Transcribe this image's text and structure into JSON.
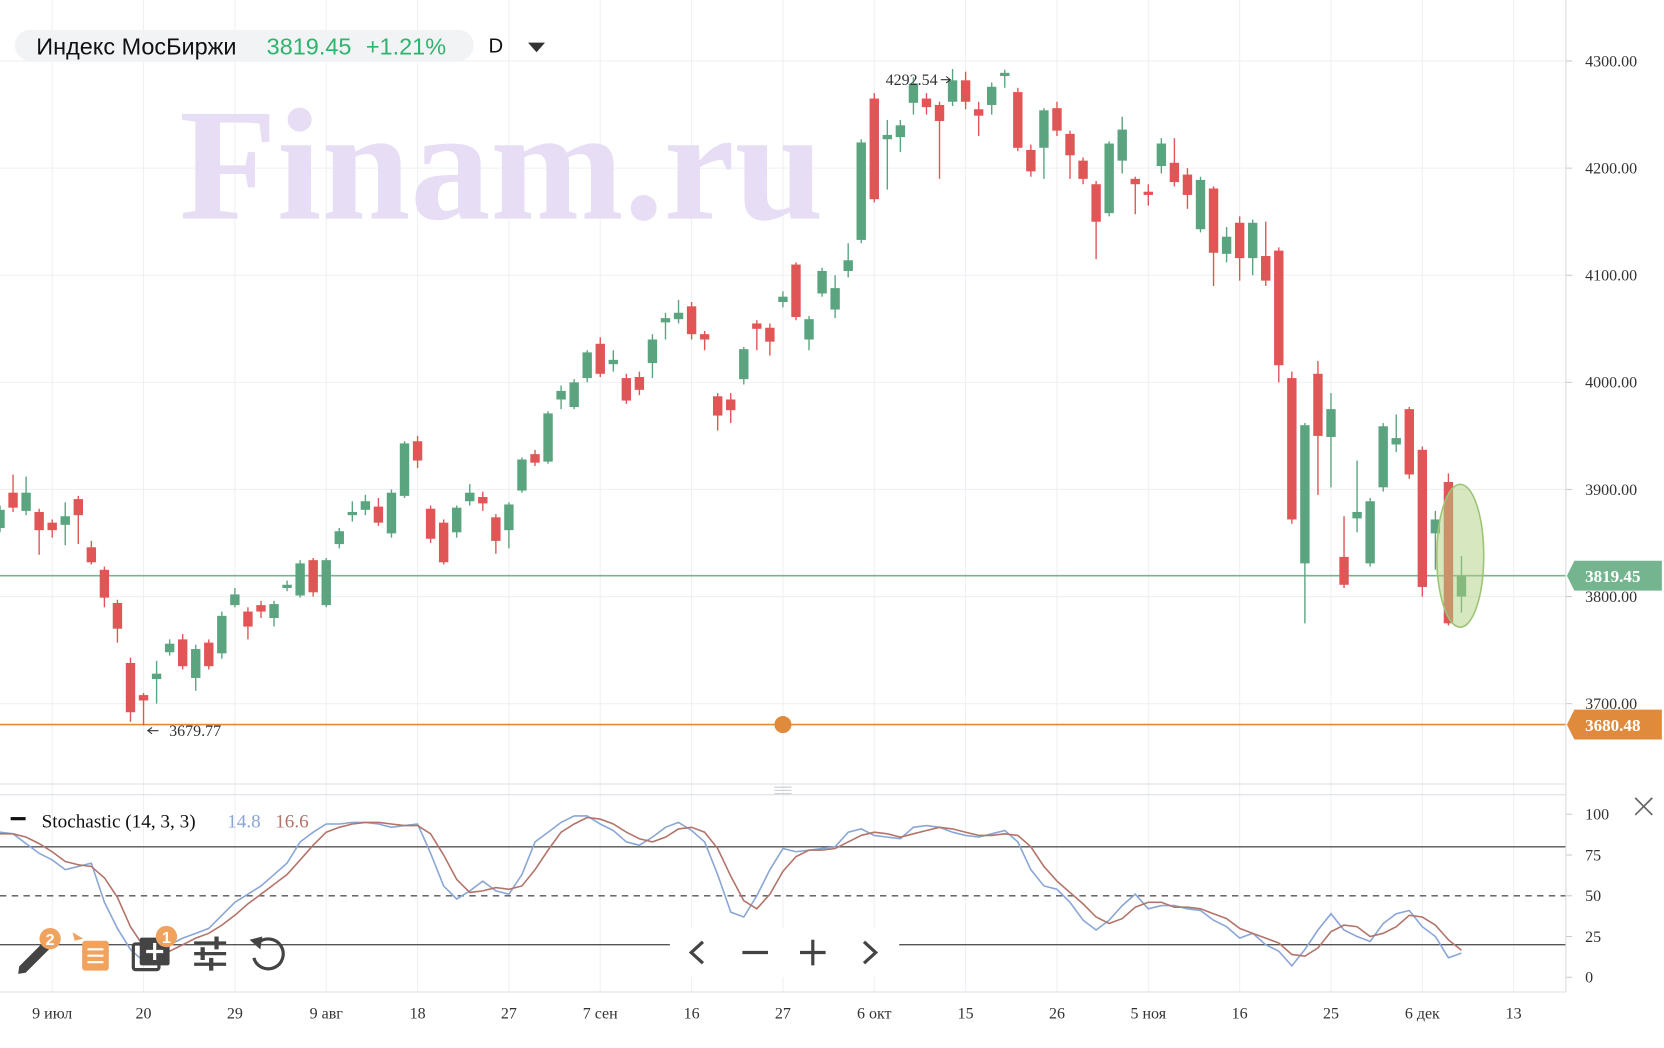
{
  "chart_data": {
    "type": "candlestick",
    "title": "Индекс МосБиржи",
    "change": "+1.21%",
    "interval": "D",
    "watermark": "Finam.ru",
    "up_color": "#5aa57f",
    "down_color": "#e05555",
    "price_line_color": "#74b58f",
    "level_line": 3680.48,
    "level_color": "#e08a3c",
    "grid": true,
    "open": [
      3864,
      3897,
      3880,
      3879,
      3869,
      3867,
      3891,
      3846,
      3825,
      3794,
      3738,
      3708,
      3723,
      3748,
      3760,
      3724,
      3757,
      3747,
      3792,
      3786,
      3792,
      3780,
      3808,
      3801,
      3834,
      3792,
      3849,
      3876,
      3881,
      3884,
      3859,
      3894,
      3945,
      3882,
      3869,
      3860,
      3889,
      3893,
      3874,
      3862,
      3899,
      3933,
      3926,
      3984,
      3977,
      4004,
      4036,
      4017,
      4004,
      4005,
      4018,
      4056,
      4059,
      4071,
      4045,
      3987,
      3984,
      4003,
      4055,
      4051,
      4075,
      4110,
      4040,
      4083,
      4068,
      4104,
      4133,
      4265,
      4227,
      4229,
      4261,
      4265,
      4259,
      4262,
      4282,
      4255,
      4259,
      4286,
      4271,
      4217,
      4219,
      4256,
      4232,
      4207,
      4185,
      4158,
      4207,
      4190,
      4178,
      4202,
      4205,
      4194,
      4143,
      4181,
      4120,
      4149,
      4116,
      4118,
      4123,
      4004,
      3831,
      4008,
      3949,
      3837,
      3873,
      3831,
      3902,
      3942,
      3975,
      3937,
      3859,
      3907,
      3800
    ],
    "high": [
      3885,
      3914,
      3912,
      3882,
      3872,
      3888,
      3894,
      3852,
      3828,
      3797,
      3743,
      3710,
      3740,
      3760,
      3765,
      3755,
      3760,
      3786,
      3808,
      3790,
      3796,
      3796,
      3815,
      3834,
      3836,
      3836,
      3864,
      3889,
      3895,
      3892,
      3900,
      3945,
      3950,
      3885,
      3872,
      3885,
      3905,
      3898,
      3877,
      3888,
      3930,
      3937,
      3973,
      3997,
      4003,
      4030,
      4042,
      4030,
      4008,
      4010,
      4045,
      4065,
      4077,
      4075,
      4048,
      3990,
      3990,
      4033,
      4058,
      4055,
      4085,
      4112,
      4062,
      4107,
      4100,
      4130,
      4227,
      4270,
      4245,
      4245,
      4285,
      4270,
      4262,
      4292.54,
      4290,
      4262,
      4280,
      4292,
      4275,
      4222,
      4256,
      4262,
      4235,
      4210,
      4188,
      4225,
      4248,
      4192,
      4185,
      4228,
      4228,
      4200,
      4192,
      4183,
      4145,
      4155,
      4152,
      4150,
      4126,
      4010,
      3962,
      4020,
      3990,
      3875,
      3927,
      3892,
      3962,
      3970,
      3977,
      3940,
      3880,
      3915,
      3838
    ],
    "low": [
      3860,
      3879,
      3876,
      3839,
      3855,
      3848,
      3849,
      3830,
      3790,
      3757,
      3683,
      3679.77,
      3700,
      3745,
      3732,
      3712,
      3732,
      3742,
      3790,
      3760,
      3780,
      3772,
      3805,
      3799,
      3800,
      3790,
      3845,
      3870,
      3876,
      3866,
      3855,
      3892,
      3920,
      3850,
      3830,
      3855,
      3885,
      3880,
      3840,
      3845,
      3897,
      3922,
      3924,
      3975,
      3975,
      4000,
      4005,
      4010,
      3980,
      3988,
      4004,
      4040,
      4055,
      4040,
      4030,
      3955,
      3962,
      3998,
      4030,
      4025,
      4070,
      4058,
      4030,
      4080,
      4060,
      4098,
      4130,
      4168,
      4180,
      4215,
      4250,
      4250,
      4190,
      4258,
      4255,
      4230,
      4250,
      4275,
      4216,
      4192,
      4190,
      4230,
      4190,
      4185,
      4115,
      4155,
      4195,
      4157,
      4165,
      4195,
      4183,
      4162,
      4140,
      4090,
      4112,
      4095,
      4100,
      4090,
      4000,
      3868,
      3775,
      3895,
      3902,
      3808,
      3860,
      3828,
      3898,
      3935,
      3910,
      3800,
      3825,
      3773,
      3785
    ],
    "close": [
      3881,
      3883,
      3897,
      3862,
      3862,
      3875,
      3876,
      3832,
      3799,
      3770,
      3692,
      3703,
      3728,
      3756,
      3735,
      3751,
      3735,
      3782,
      3802,
      3772,
      3786,
      3793,
      3811,
      3831,
      3804,
      3834,
      3861,
      3879,
      3889,
      3869,
      3897,
      3943,
      3927,
      3854,
      3832,
      3883,
      3897,
      3887,
      3852,
      3886,
      3928,
      3925,
      3971,
      3992,
      4000,
      4028,
      4008,
      4021,
      3983,
      3993,
      4040,
      4060,
      4065,
      4045,
      4040,
      3969,
      3974,
      4031,
      4050,
      4038,
      4080,
      4061,
      4059,
      4104,
      4088,
      4114,
      4224,
      4171,
      4231,
      4240,
      4279,
      4257,
      4244,
      4282,
      4262,
      4249,
      4276,
      4289,
      4219,
      4197,
      4254,
      4235,
      4212,
      4190,
      4150,
      4223,
      4236,
      4185,
      4175,
      4223,
      4187,
      4175,
      4189,
      4121,
      4136,
      4116,
      4149,
      4095,
      4016,
      3872,
      3960,
      3950,
      3975,
      3811,
      3879,
      3889,
      3959,
      3948,
      3914,
      3809,
      3872,
      3775,
      3819.45
    ],
    "xlim": [
      0,
      120
    ],
    "xticks": [
      {
        "value": 4,
        "label": "9 июл"
      },
      {
        "value": 11,
        "label": "20"
      },
      {
        "value": 18,
        "label": "29"
      },
      {
        "value": 25,
        "label": "9 авг"
      },
      {
        "value": 32,
        "label": "18"
      },
      {
        "value": 39,
        "label": "27"
      },
      {
        "value": 46,
        "label": "7 сен"
      },
      {
        "value": 53,
        "label": "16"
      },
      {
        "value": 60,
        "label": "27"
      },
      {
        "value": 67,
        "label": "6 окт"
      },
      {
        "value": 74,
        "label": "15"
      },
      {
        "value": 81,
        "label": "26"
      },
      {
        "value": 88,
        "label": "5 ноя"
      },
      {
        "value": 95,
        "label": "16"
      },
      {
        "value": 102,
        "label": "25"
      },
      {
        "value": 109,
        "label": "6 дек"
      },
      {
        "value": 116,
        "label": "13"
      }
    ],
    "ylim": [
      3625,
      4357
    ],
    "yticks": [
      {
        "value": 3700,
        "label": "3700.00"
      },
      {
        "value": 3800,
        "label": "3800.00"
      },
      {
        "value": 3900,
        "label": "3900.00"
      },
      {
        "value": 4000,
        "label": "4000.00"
      },
      {
        "value": 4100,
        "label": "4100.00"
      },
      {
        "value": 4200,
        "label": "4200.00"
      },
      {
        "value": 4300,
        "label": "4300.00"
      }
    ],
    "indicator": {
      "type": "line",
      "name": "Stochastic (14, 3, 3)",
      "ylim": [
        -9,
        112
      ],
      "yticks": [
        0,
        25,
        50,
        75,
        100
      ],
      "levels": [
        80,
        50,
        20
      ],
      "series": [
        {
          "color": "#8aa6d6",
          "values": [
            89,
            88,
            82,
            76,
            72,
            66,
            68,
            70,
            46,
            30,
            17,
            10,
            17,
            20,
            24,
            27,
            30,
            38,
            46,
            51,
            56,
            63,
            70,
            83,
            89,
            94,
            94,
            95,
            95,
            94,
            92,
            93,
            94,
            76,
            56,
            48,
            53,
            59,
            53,
            51,
            63,
            83,
            89,
            95,
            99,
            99,
            94,
            90,
            83,
            81,
            86,
            92,
            95,
            90,
            83,
            63,
            40,
            37,
            50,
            66,
            79,
            77,
            78,
            79,
            80,
            89,
            91,
            87,
            86,
            85,
            92,
            93,
            92,
            89,
            87,
            86,
            88,
            90,
            83,
            66,
            56,
            54,
            46,
            35,
            29,
            35,
            44,
            51,
            42,
            44,
            44,
            42,
            41,
            35,
            31,
            24,
            27,
            20,
            16,
            7,
            17,
            29,
            39,
            29,
            25,
            22,
            33,
            39,
            41,
            31,
            25,
            12,
            14.8
          ]
        },
        {
          "color": "#b3746a",
          "values": [
            88,
            88,
            86,
            82,
            77,
            71,
            69,
            68,
            61,
            49,
            31,
            19,
            15,
            16,
            20,
            24,
            27,
            32,
            38,
            45,
            51,
            57,
            63,
            72,
            81,
            89,
            92,
            94,
            95,
            95,
            94,
            93,
            93,
            88,
            75,
            60,
            52,
            53,
            55,
            54,
            56,
            66,
            78,
            89,
            94,
            98,
            97,
            94,
            89,
            85,
            83,
            86,
            91,
            92,
            89,
            79,
            62,
            47,
            42,
            51,
            65,
            74,
            78,
            78,
            79,
            83,
            87,
            89,
            88,
            86,
            88,
            90,
            92,
            91,
            89,
            87,
            87,
            88,
            87,
            80,
            68,
            59,
            52,
            45,
            37,
            33,
            36,
            43,
            46,
            46,
            43,
            43,
            42,
            39,
            36,
            30,
            27,
            24,
            21,
            14,
            13,
            18,
            28,
            32,
            31,
            25,
            27,
            31,
            38,
            37,
            32,
            23,
            16.6
          ]
        }
      ]
    }
  },
  "toolbar": {
    "badges": [
      "2",
      "1"
    ]
  }
}
